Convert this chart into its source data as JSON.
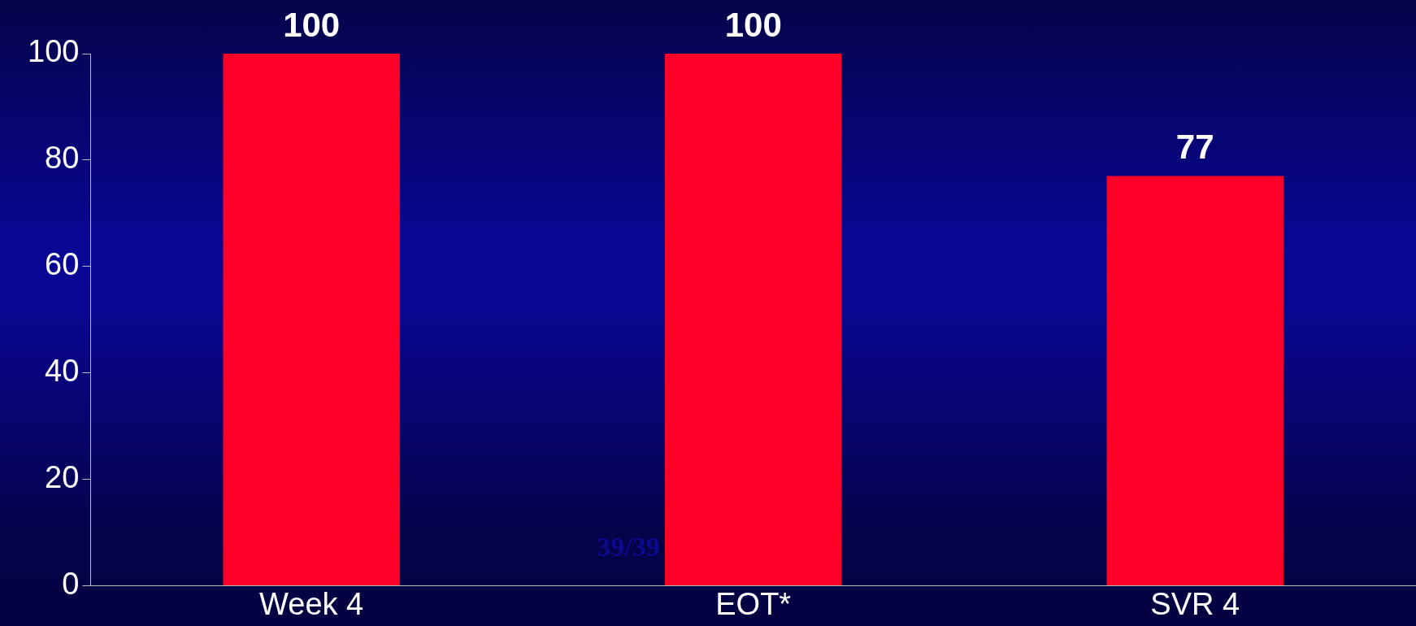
{
  "chart_data": {
    "type": "bar",
    "categories": [
      "Week 4",
      "EOT*",
      "SVR 4"
    ],
    "values": [
      100,
      100,
      77
    ],
    "color": "#ff0029",
    "ylim": [
      0,
      100
    ],
    "yticks": [
      0,
      20,
      40,
      60,
      80,
      100
    ],
    "grid": false,
    "legend": false,
    "data_labels": true,
    "annotations": [
      "39/39"
    ]
  }
}
